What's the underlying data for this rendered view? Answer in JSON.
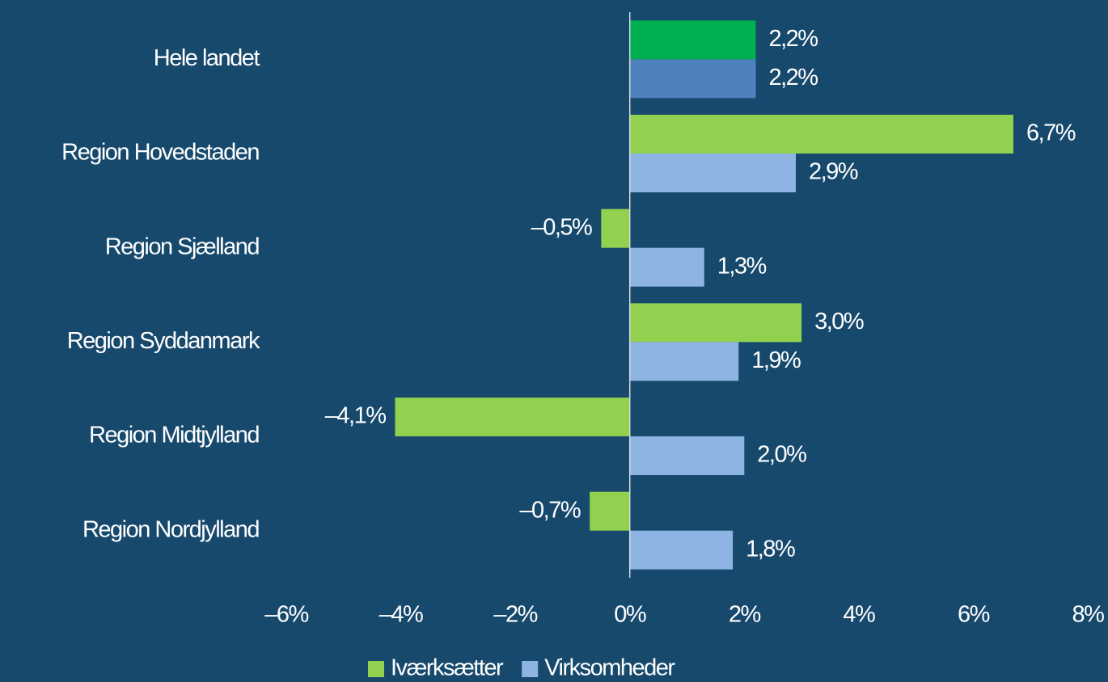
{
  "chart_data": {
    "type": "barh",
    "categories": [
      "Hele landet",
      "Region Hovedstaden",
      "Region Sjælland",
      "Region Syddanmark",
      "Region Midtjylland",
      "Region Nordjylland"
    ],
    "series": [
      {
        "name": "Iværksætter",
        "color": "#92d050",
        "colors": [
          "#00b050",
          "#92d050",
          "#92d050",
          "#92d050",
          "#92d050",
          "#92d050"
        ],
        "values": [
          2.2,
          6.7,
          -0.5,
          3.0,
          -4.1,
          -0.7
        ],
        "value_labels": [
          "2,2%",
          "6,7%",
          "–0,5%",
          "3,0%",
          "–4,1%",
          "–0,7%"
        ]
      },
      {
        "name": "Virksomheder",
        "color": "#8eb4e3",
        "colors": [
          "#4f81bd",
          "#8eb4e3",
          "#8eb4e3",
          "#8eb4e3",
          "#8eb4e3",
          "#8eb4e3"
        ],
        "values": [
          2.2,
          2.9,
          1.3,
          1.9,
          2.0,
          1.8
        ],
        "value_labels": [
          "2,2%",
          "2,9%",
          "1,3%",
          "1,9%",
          "2,0%",
          "1,8%"
        ]
      }
    ],
    "xlim": [
      -6,
      8
    ],
    "xticks": [
      {
        "value": -6,
        "label": "–6%"
      },
      {
        "value": -4,
        "label": "–4%"
      },
      {
        "value": -2,
        "label": "–2%"
      },
      {
        "value": 0,
        "label": "0%"
      },
      {
        "value": 2,
        "label": "2%"
      },
      {
        "value": 4,
        "label": "4%"
      },
      {
        "value": 6,
        "label": "6%"
      },
      {
        "value": 8,
        "label": "8%"
      }
    ],
    "legend": "bottom"
  }
}
